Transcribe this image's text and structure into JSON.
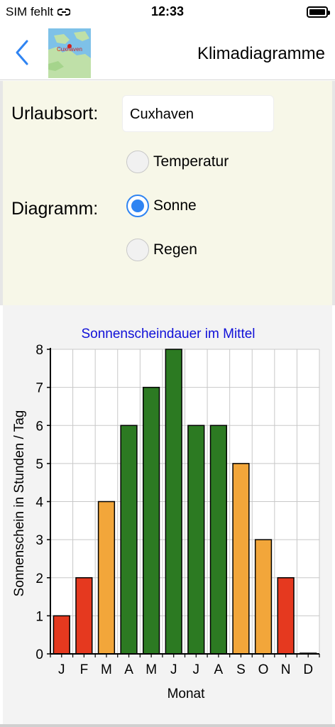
{
  "status": {
    "carrier": "SIM fehlt",
    "time": "12:33"
  },
  "nav": {
    "title": "Klimadiagramme",
    "thumb_label": "Cuxhaven"
  },
  "form": {
    "location_label": "Urlaubsort:",
    "location_value": "Cuxhaven",
    "diagram_label": "Diagramm:",
    "options": [
      {
        "label": "Temperatur",
        "selected": false
      },
      {
        "label": "Sonne",
        "selected": true
      },
      {
        "label": "Regen",
        "selected": false
      }
    ]
  },
  "colors": {
    "green": "#2c7a22",
    "orange": "#f2a63a",
    "red": "#e5391f",
    "title_blue": "#1010d8",
    "accent": "#2f84f2"
  },
  "chart_data": {
    "type": "bar",
    "title": "Sonnenscheindauer im Mittel",
    "xlabel": "Monat",
    "ylabel": "Sonnenschein in Stunden / Tag",
    "categories": [
      "J",
      "F",
      "M",
      "A",
      "M",
      "J",
      "J",
      "A",
      "S",
      "O",
      "N",
      "D"
    ],
    "values": [
      1,
      2,
      4,
      6,
      7,
      8,
      6,
      6,
      5,
      3,
      2,
      0
    ],
    "bar_colors": [
      "red",
      "red",
      "orange",
      "green",
      "green",
      "green",
      "green",
      "green",
      "orange",
      "orange",
      "red",
      "red"
    ],
    "yticks": [
      "0",
      "1",
      "2",
      "3",
      "4",
      "5",
      "6",
      "7",
      "8"
    ],
    "ylim": [
      0,
      8
    ],
    "grid": true
  }
}
